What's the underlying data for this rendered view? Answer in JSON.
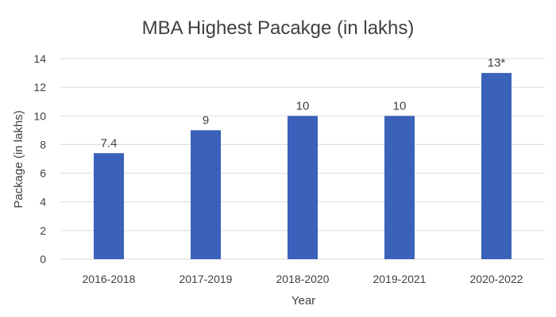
{
  "chart_data": {
    "type": "bar",
    "title": "MBA Highest Pacakge (in lakhs)",
    "xlabel": "Year",
    "ylabel": "Package (in lakhs)",
    "categories": [
      "2016-2018",
      "2017-2019",
      "2018-2020",
      "2019-2021",
      "2020-2022"
    ],
    "values": [
      7.4,
      9,
      10,
      10,
      13
    ],
    "data_labels": [
      "7.4",
      "9",
      "10",
      "10",
      "13*"
    ],
    "yticks": [
      "0",
      "2",
      "4",
      "6",
      "8",
      "10",
      "12",
      "14"
    ],
    "ylim": [
      0,
      14
    ],
    "grid": true,
    "legend": "none",
    "bar_color": "#3A62BA",
    "grid_color": "#D9D9D9"
  }
}
